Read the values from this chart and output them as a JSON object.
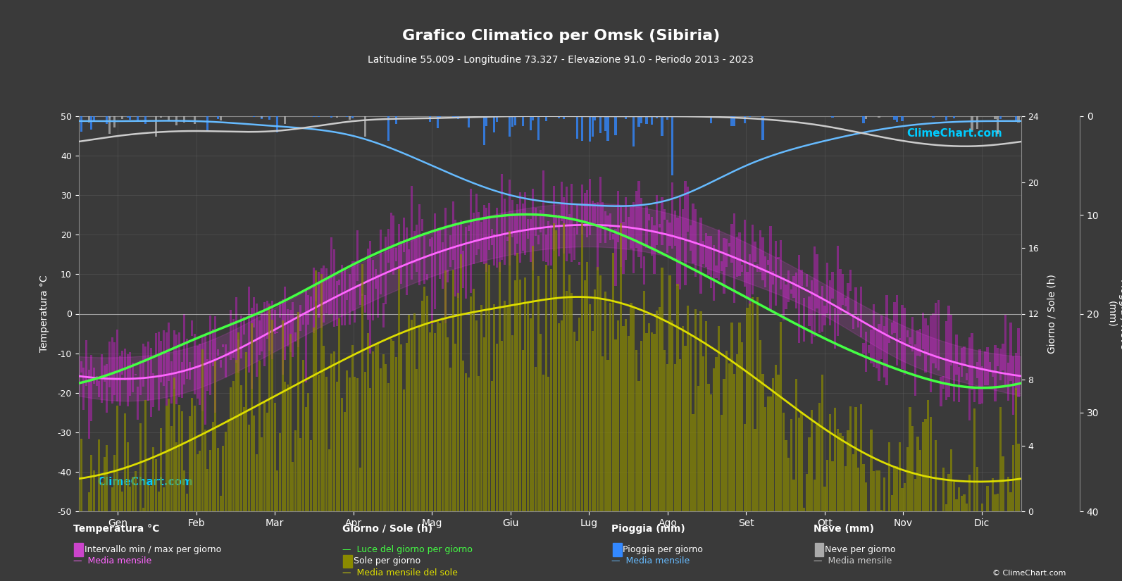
{
  "title": "Grafico Climatico per Omsk (Sibiria)",
  "subtitle": "Latitudine 55.009 - Longitudine 73.327 - Elevazione 91.0 - Periodo 2013 - 2023",
  "background_color": "#3a3a3a",
  "plot_bg_color": "#3a3a3a",
  "months": [
    "Gen",
    "Feb",
    "Mar",
    "Apr",
    "Mag",
    "Giu",
    "Lug",
    "Ago",
    "Set",
    "Ott",
    "Nov",
    "Dic"
  ],
  "temp_ylim": [
    -50,
    50
  ],
  "precip_ylim_reverse": [
    40,
    0
  ],
  "sun_ylim": [
    0,
    24
  ],
  "temp_mean": [
    -16.5,
    -13.5,
    -4.0,
    6.5,
    15.0,
    20.5,
    22.5,
    20.0,
    13.0,
    3.5,
    -7.5,
    -14.0
  ],
  "temp_max_mean": [
    -11.0,
    -8.0,
    1.5,
    12.0,
    20.5,
    26.0,
    28.0,
    25.5,
    18.0,
    7.5,
    -3.0,
    -9.5
  ],
  "temp_min_mean": [
    -22.0,
    -19.0,
    -9.5,
    1.0,
    9.5,
    15.0,
    17.0,
    14.5,
    8.0,
    -0.5,
    -12.0,
    -18.5
  ],
  "temp_max_daily": [
    5.0,
    8.0,
    18.0,
    28.0,
    35.0,
    38.0,
    38.5,
    36.0,
    30.0,
    20.0,
    8.0,
    5.0
  ],
  "temp_min_daily": [
    -48.0,
    -44.0,
    -35.0,
    -15.0,
    -5.0,
    3.0,
    7.0,
    3.0,
    -5.0,
    -20.0,
    -38.0,
    -44.0
  ],
  "daylight_mean": [
    8.5,
    10.5,
    12.5,
    15.0,
    17.0,
    18.0,
    17.5,
    15.5,
    13.0,
    10.5,
    8.5,
    7.5
  ],
  "sunshine_mean": [
    2.5,
    4.5,
    7.0,
    9.5,
    11.5,
    12.5,
    13.0,
    11.5,
    8.5,
    5.0,
    2.5,
    1.8
  ],
  "rain_mean": [
    0.5,
    0.5,
    1.0,
    2.0,
    5.0,
    8.0,
    9.0,
    8.5,
    5.0,
    2.5,
    1.0,
    0.5
  ],
  "snow_mean": [
    2.0,
    1.5,
    1.5,
    0.5,
    0.2,
    0.0,
    0.0,
    0.0,
    0.2,
    1.0,
    2.5,
    3.0
  ],
  "grid_color": "#666666",
  "temp_interval_color": "#cc44cc",
  "temp_mean_color": "#ff44ff",
  "daylight_color": "#44ff44",
  "sunshine_color": "#cccc00",
  "sunshine_mean_color": "#dddd00",
  "rain_color": "#4499ff",
  "rain_mean_color": "#4499ff",
  "snow_color": "#aaaaaa",
  "snow_mean_color": "#aaaaaa"
}
